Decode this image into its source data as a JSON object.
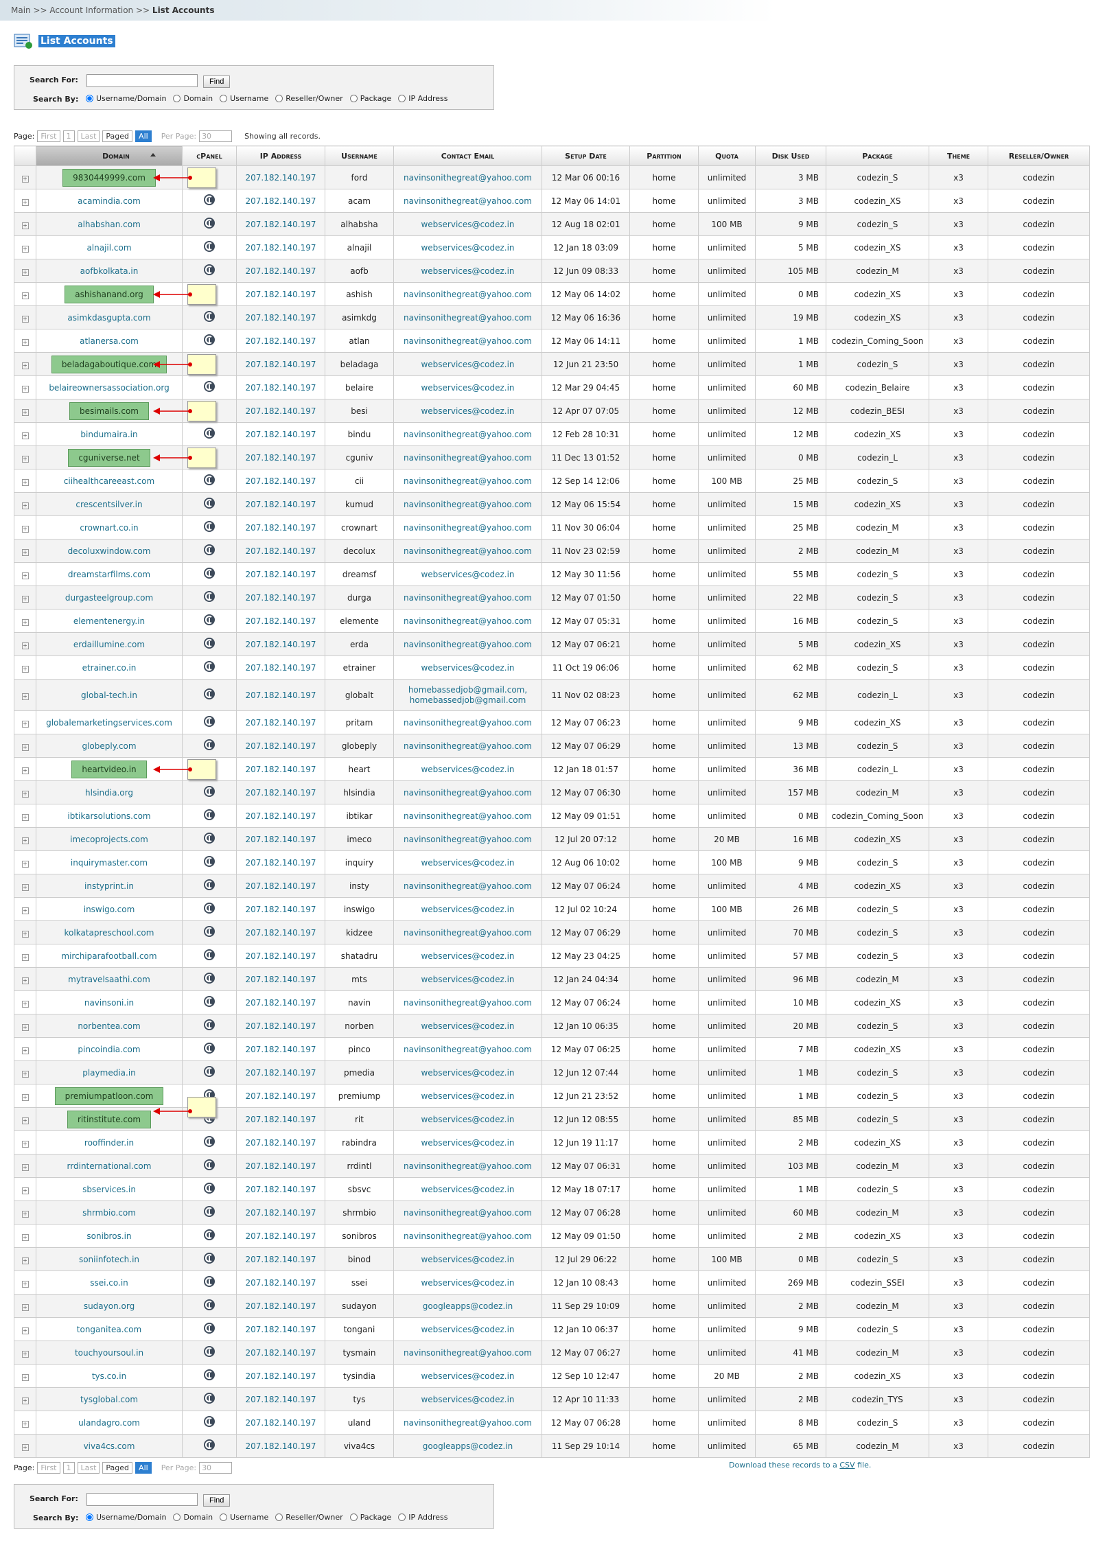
{
  "breadcrumb": {
    "items": [
      "Main",
      "Account Information",
      "List Accounts"
    ],
    "separator": ">>"
  },
  "title": "List Accounts",
  "search": {
    "label": "Search For:",
    "button": "Find",
    "by_label": "Search By:",
    "options": [
      "Username/Domain",
      "Domain",
      "Username",
      "Reseller/Owner",
      "Package",
      "IP Address"
    ]
  },
  "pager": {
    "label": "Page:",
    "buttons": [
      "First",
      "1",
      "Last",
      "Paged",
      "All"
    ],
    "per_page_label": "Per Page:",
    "per_page": "30",
    "status": "Showing all records."
  },
  "csv": {
    "before": "Download these records to a",
    "link": "CSV",
    "after": "file."
  },
  "table": {
    "headers": [
      "Domain",
      "cPanel",
      "IP Address",
      "Username",
      "Contact Email",
      "Setup Date",
      "Partition",
      "Quota",
      "Disk Used",
      "Package",
      "Theme",
      "Reseller/Owner"
    ],
    "annotated_rows": [
      0,
      5,
      8,
      10,
      12,
      25,
      39,
      40
    ],
    "rows": [
      [
        "9830449999.com",
        "207.182.140.197",
        "ford",
        "navinsonithegreat@yahoo.com",
        "12 Mar 06 00:16",
        "home",
        "unlimited",
        "3 MB",
        "codezin_S",
        "x3",
        "codezin"
      ],
      [
        "acamindia.com",
        "207.182.140.197",
        "acam",
        "navinsonithegreat@yahoo.com",
        "12 May 06 14:01",
        "home",
        "unlimited",
        "3 MB",
        "codezin_XS",
        "x3",
        "codezin"
      ],
      [
        "alhabshan.com",
        "207.182.140.197",
        "alhabsha",
        "webservices@codez.in",
        "12 Aug 18 02:01",
        "home",
        "100 MB",
        "9 MB",
        "codezin_S",
        "x3",
        "codezin"
      ],
      [
        "alnajil.com",
        "207.182.140.197",
        "alnajil",
        "webservices@codez.in",
        "12 Jan 18 03:09",
        "home",
        "unlimited",
        "5 MB",
        "codezin_XS",
        "x3",
        "codezin"
      ],
      [
        "aofbkolkata.in",
        "207.182.140.197",
        "aofb",
        "webservices@codez.in",
        "12 Jun 09 08:33",
        "home",
        "unlimited",
        "105 MB",
        "codezin_M",
        "x3",
        "codezin"
      ],
      [
        "ashishanand.org",
        "207.182.140.197",
        "ashish",
        "navinsonithegreat@yahoo.com",
        "12 May 06 14:02",
        "home",
        "unlimited",
        "0 MB",
        "codezin_XS",
        "x3",
        "codezin"
      ],
      [
        "asimkdasgupta.com",
        "207.182.140.197",
        "asimkdg",
        "navinsonithegreat@yahoo.com",
        "12 May 06 16:36",
        "home",
        "unlimited",
        "19 MB",
        "codezin_XS",
        "x3",
        "codezin"
      ],
      [
        "atlanersa.com",
        "207.182.140.197",
        "atlan",
        "navinsonithegreat@yahoo.com",
        "12 May 06 14:11",
        "home",
        "unlimited",
        "1 MB",
        "codezin_Coming_Soon",
        "x3",
        "codezin"
      ],
      [
        "beladagaboutique.com",
        "207.182.140.197",
        "beladaga",
        "webservices@codez.in",
        "12 Jun 21 23:50",
        "home",
        "unlimited",
        "1 MB",
        "codezin_S",
        "x3",
        "codezin"
      ],
      [
        "belaireownersassociation.org",
        "207.182.140.197",
        "belaire",
        "webservices@codez.in",
        "12 Mar 29 04:45",
        "home",
        "unlimited",
        "60 MB",
        "codezin_Belaire",
        "x3",
        "codezin"
      ],
      [
        "besimails.com",
        "207.182.140.197",
        "besi",
        "webservices@codez.in",
        "12 Apr 07 07:05",
        "home",
        "unlimited",
        "12 MB",
        "codezin_BESI",
        "x3",
        "codezin"
      ],
      [
        "bindumaira.in",
        "207.182.140.197",
        "bindu",
        "navinsonithegreat@yahoo.com",
        "12 Feb 28 10:31",
        "home",
        "unlimited",
        "12 MB",
        "codezin_XS",
        "x3",
        "codezin"
      ],
      [
        "cguniverse.net",
        "207.182.140.197",
        "cguniv",
        "navinsonithegreat@yahoo.com",
        "11 Dec 13 01:52",
        "home",
        "unlimited",
        "0 MB",
        "codezin_L",
        "x3",
        "codezin"
      ],
      [
        "ciihealthcareeast.com",
        "207.182.140.197",
        "cii",
        "navinsonithegreat@yahoo.com",
        "12 Sep 14 12:06",
        "home",
        "100 MB",
        "25 MB",
        "codezin_S",
        "x3",
        "codezin"
      ],
      [
        "crescentsilver.in",
        "207.182.140.197",
        "kumud",
        "navinsonithegreat@yahoo.com",
        "12 May 06 15:54",
        "home",
        "unlimited",
        "15 MB",
        "codezin_XS",
        "x3",
        "codezin"
      ],
      [
        "crownart.co.in",
        "207.182.140.197",
        "crownart",
        "navinsonithegreat@yahoo.com",
        "11 Nov 30 06:04",
        "home",
        "unlimited",
        "25 MB",
        "codezin_M",
        "x3",
        "codezin"
      ],
      [
        "decoluxwindow.com",
        "207.182.140.197",
        "decolux",
        "navinsonithegreat@yahoo.com",
        "11 Nov 23 02:59",
        "home",
        "unlimited",
        "2 MB",
        "codezin_M",
        "x3",
        "codezin"
      ],
      [
        "dreamstarfilms.com",
        "207.182.140.197",
        "dreamsf",
        "webservices@codez.in",
        "12 May 30 11:56",
        "home",
        "unlimited",
        "55 MB",
        "codezin_S",
        "x3",
        "codezin"
      ],
      [
        "durgasteelgroup.com",
        "207.182.140.197",
        "durga",
        "navinsonithegreat@yahoo.com",
        "12 May 07 01:50",
        "home",
        "unlimited",
        "22 MB",
        "codezin_S",
        "x3",
        "codezin"
      ],
      [
        "elementenergy.in",
        "207.182.140.197",
        "elemente",
        "navinsonithegreat@yahoo.com",
        "12 May 07 05:31",
        "home",
        "unlimited",
        "16 MB",
        "codezin_S",
        "x3",
        "codezin"
      ],
      [
        "erdaillumine.com",
        "207.182.140.197",
        "erda",
        "navinsonithegreat@yahoo.com",
        "12 May 07 06:21",
        "home",
        "unlimited",
        "5 MB",
        "codezin_XS",
        "x3",
        "codezin"
      ],
      [
        "etrainer.co.in",
        "207.182.140.197",
        "etrainer",
        "webservices@codez.in",
        "11 Oct 19 06:06",
        "home",
        "unlimited",
        "62 MB",
        "codezin_S",
        "x3",
        "codezin"
      ],
      [
        "global-tech.in",
        "207.182.140.197",
        "globalt",
        "homebassedjob@gmail.com, homebassedjob@gmail.com",
        "11 Nov 02 08:23",
        "home",
        "unlimited",
        "62 MB",
        "codezin_L",
        "x3",
        "codezin"
      ],
      [
        "globalemarketingservices.com",
        "207.182.140.197",
        "pritam",
        "navinsonithegreat@yahoo.com",
        "12 May 07 06:23",
        "home",
        "unlimited",
        "9 MB",
        "codezin_XS",
        "x3",
        "codezin"
      ],
      [
        "globeply.com",
        "207.182.140.197",
        "globeply",
        "navinsonithegreat@yahoo.com",
        "12 May 07 06:29",
        "home",
        "unlimited",
        "13 MB",
        "codezin_S",
        "x3",
        "codezin"
      ],
      [
        "heartvideo.in",
        "207.182.140.197",
        "heart",
        "webservices@codez.in",
        "12 Jan 18 01:57",
        "home",
        "unlimited",
        "36 MB",
        "codezin_L",
        "x3",
        "codezin"
      ],
      [
        "hlsindia.org",
        "207.182.140.197",
        "hlsindia",
        "navinsonithegreat@yahoo.com",
        "12 May 07 06:30",
        "home",
        "unlimited",
        "157 MB",
        "codezin_M",
        "x3",
        "codezin"
      ],
      [
        "ibtikarsolutions.com",
        "207.182.140.197",
        "ibtikar",
        "navinsonithegreat@yahoo.com",
        "12 May 09 01:51",
        "home",
        "unlimited",
        "0 MB",
        "codezin_Coming_Soon",
        "x3",
        "codezin"
      ],
      [
        "imecoprojects.com",
        "207.182.140.197",
        "imeco",
        "navinsonithegreat@yahoo.com",
        "12 Jul 20 07:12",
        "home",
        "20 MB",
        "16 MB",
        "codezin_XS",
        "x3",
        "codezin"
      ],
      [
        "inquirymaster.com",
        "207.182.140.197",
        "inquiry",
        "webservices@codez.in",
        "12 Aug 06 10:02",
        "home",
        "100 MB",
        "9 MB",
        "codezin_S",
        "x3",
        "codezin"
      ],
      [
        "instyprint.in",
        "207.182.140.197",
        "insty",
        "navinsonithegreat@yahoo.com",
        "12 May 07 06:24",
        "home",
        "unlimited",
        "4 MB",
        "codezin_XS",
        "x3",
        "codezin"
      ],
      [
        "inswigo.com",
        "207.182.140.197",
        "inswigo",
        "webservices@codez.in",
        "12 Jul 02 10:24",
        "home",
        "100 MB",
        "26 MB",
        "codezin_S",
        "x3",
        "codezin"
      ],
      [
        "kolkatapreschool.com",
        "207.182.140.197",
        "kidzee",
        "navinsonithegreat@yahoo.com",
        "12 May 07 06:29",
        "home",
        "unlimited",
        "70 MB",
        "codezin_S",
        "x3",
        "codezin"
      ],
      [
        "mirchiparafootball.com",
        "207.182.140.197",
        "shatadru",
        "webservices@codez.in",
        "12 May 23 04:25",
        "home",
        "unlimited",
        "57 MB",
        "codezin_S",
        "x3",
        "codezin"
      ],
      [
        "mytravelsaathi.com",
        "207.182.140.197",
        "mts",
        "webservices@codez.in",
        "12 Jan 24 04:34",
        "home",
        "unlimited",
        "96 MB",
        "codezin_M",
        "x3",
        "codezin"
      ],
      [
        "navinsoni.in",
        "207.182.140.197",
        "navin",
        "navinsonithegreat@yahoo.com",
        "12 May 07 06:24",
        "home",
        "unlimited",
        "10 MB",
        "codezin_XS",
        "x3",
        "codezin"
      ],
      [
        "norbentea.com",
        "207.182.140.197",
        "norben",
        "webservices@codez.in",
        "12 Jan 10 06:35",
        "home",
        "unlimited",
        "20 MB",
        "codezin_S",
        "x3",
        "codezin"
      ],
      [
        "pincoindia.com",
        "207.182.140.197",
        "pinco",
        "navinsonithegreat@yahoo.com",
        "12 May 07 06:25",
        "home",
        "unlimited",
        "7 MB",
        "codezin_XS",
        "x3",
        "codezin"
      ],
      [
        "playmedia.in",
        "207.182.140.197",
        "pmedia",
        "webservices@codez.in",
        "12 Jun 12 07:44",
        "home",
        "unlimited",
        "1 MB",
        "codezin_S",
        "x3",
        "codezin"
      ],
      [
        "premiumpatloon.com",
        "207.182.140.197",
        "premiump",
        "webservices@codez.in",
        "12 Jun 21 23:52",
        "home",
        "unlimited",
        "1 MB",
        "codezin_S",
        "x3",
        "codezin"
      ],
      [
        "ritinstitute.com",
        "207.182.140.197",
        "rit",
        "webservices@codez.in",
        "12 Jun 12 08:55",
        "home",
        "unlimited",
        "85 MB",
        "codezin_S",
        "x3",
        "codezin"
      ],
      [
        "rooffinder.in",
        "207.182.140.197",
        "rabindra",
        "webservices@codez.in",
        "12 Jun 19 11:17",
        "home",
        "unlimited",
        "2 MB",
        "codezin_XS",
        "x3",
        "codezin"
      ],
      [
        "rrdinternational.com",
        "207.182.140.197",
        "rrdintl",
        "navinsonithegreat@yahoo.com",
        "12 May 07 06:31",
        "home",
        "unlimited",
        "103 MB",
        "codezin_M",
        "x3",
        "codezin"
      ],
      [
        "sbservices.in",
        "207.182.140.197",
        "sbsvc",
        "webservices@codez.in",
        "12 May 18 07:17",
        "home",
        "unlimited",
        "1 MB",
        "codezin_S",
        "x3",
        "codezin"
      ],
      [
        "shrmbio.com",
        "207.182.140.197",
        "shrmbio",
        "navinsonithegreat@yahoo.com",
        "12 May 07 06:28",
        "home",
        "unlimited",
        "60 MB",
        "codezin_M",
        "x3",
        "codezin"
      ],
      [
        "sonibros.in",
        "207.182.140.197",
        "sonibros",
        "navinsonithegreat@yahoo.com",
        "12 May 09 01:50",
        "home",
        "unlimited",
        "2 MB",
        "codezin_XS",
        "x3",
        "codezin"
      ],
      [
        "soniinfotech.in",
        "207.182.140.197",
        "binod",
        "webservices@codez.in",
        "12 Jul 29 06:22",
        "home",
        "100 MB",
        "0 MB",
        "codezin_S",
        "x3",
        "codezin"
      ],
      [
        "ssei.co.in",
        "207.182.140.197",
        "ssei",
        "webservices@codez.in",
        "12 Jan 10 08:43",
        "home",
        "unlimited",
        "269 MB",
        "codezin_SSEI",
        "x3",
        "codezin"
      ],
      [
        "sudayon.org",
        "207.182.140.197",
        "sudayon",
        "googleapps@codez.in",
        "11 Sep 29 10:09",
        "home",
        "unlimited",
        "2 MB",
        "codezin_M",
        "x3",
        "codezin"
      ],
      [
        "tonganitea.com",
        "207.182.140.197",
        "tongani",
        "webservices@codez.in",
        "12 Jan 10 06:37",
        "home",
        "unlimited",
        "9 MB",
        "codezin_S",
        "x3",
        "codezin"
      ],
      [
        "touchyoursoul.in",
        "207.182.140.197",
        "tysmain",
        "navinsonithegreat@yahoo.com",
        "12 May 07 06:27",
        "home",
        "unlimited",
        "41 MB",
        "codezin_M",
        "x3",
        "codezin"
      ],
      [
        "tys.co.in",
        "207.182.140.197",
        "tysindia",
        "webservices@codez.in",
        "12 Sep 10 12:47",
        "home",
        "20 MB",
        "2 MB",
        "codezin_XS",
        "x3",
        "codezin"
      ],
      [
        "tysglobal.com",
        "207.182.140.197",
        "tys",
        "webservices@codez.in",
        "12 Apr 10 11:33",
        "home",
        "unlimited",
        "2 MB",
        "codezin_TYS",
        "x3",
        "codezin"
      ],
      [
        "ulandagro.com",
        "207.182.140.197",
        "uland",
        "navinsonithegreat@yahoo.com",
        "12 May 07 06:28",
        "home",
        "unlimited",
        "8 MB",
        "codezin_S",
        "x3",
        "codezin"
      ],
      [
        "viva4cs.com",
        "207.182.140.197",
        "viva4cs",
        "googleapps@codez.in",
        "11 Sep 29 10:14",
        "home",
        "unlimited",
        "65 MB",
        "codezin_M",
        "x3",
        "codezin"
      ]
    ]
  }
}
